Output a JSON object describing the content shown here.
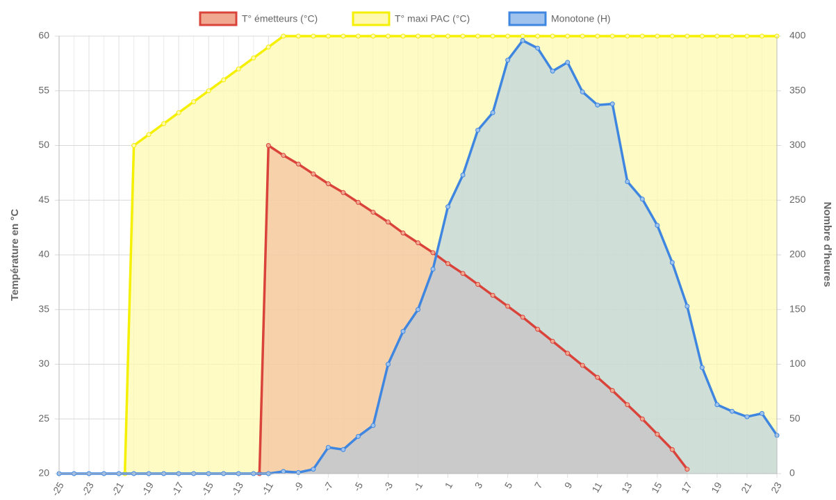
{
  "chart_data": {
    "type": "line",
    "y_label": "Température en °C",
    "y2_label": "Nombre d'heures",
    "xlim": [
      -25,
      23
    ],
    "xticks": [
      -25,
      -23,
      -21,
      -19,
      -17,
      -15,
      -13,
      -11,
      -9,
      -7,
      -5,
      -3,
      -1,
      1,
      3,
      5,
      7,
      9,
      11,
      13,
      15,
      17,
      19,
      21,
      23
    ],
    "ylim": [
      20,
      60
    ],
    "yticks": [
      20,
      25,
      30,
      35,
      40,
      45,
      50,
      55,
      60
    ],
    "y2lim": [
      0,
      400
    ],
    "y2ticks": [
      0,
      50,
      100,
      150,
      200,
      250,
      300,
      350,
      400
    ],
    "grid": true,
    "legend": "top",
    "series": [
      {
        "name": "T° maxi PAC (°C)",
        "color": "#f5f000",
        "fill": "#fff9b0",
        "axis": "y",
        "x": [
          -20.6,
          -20,
          -19,
          -18,
          -17,
          -16,
          -15,
          -14,
          -13,
          -12,
          -11,
          -10,
          -9,
          -8,
          -7,
          -6,
          -5,
          -4,
          -3,
          -2,
          -1,
          0,
          1,
          2,
          3,
          4,
          5,
          6,
          7,
          8,
          9,
          10,
          11,
          12,
          13,
          14,
          15,
          16,
          17,
          18,
          19,
          20,
          21,
          22,
          23
        ],
        "values": [
          20,
          50,
          51,
          52,
          53,
          54,
          55,
          56,
          57,
          58,
          59,
          60,
          60,
          60,
          60,
          60,
          60,
          60,
          60,
          60,
          60,
          60,
          60,
          60,
          60,
          60,
          60,
          60,
          60,
          60,
          60,
          60,
          60,
          60,
          60,
          60,
          60,
          60,
          60,
          60,
          60,
          60,
          60,
          60,
          60
        ]
      },
      {
        "name": "T° émetteurs (°C)",
        "color": "#d9433a",
        "fill": "#f0a890",
        "axis": "y",
        "x": [
          -11.6,
          -11,
          -10,
          -9,
          -8,
          -7,
          -6,
          -5,
          -4,
          -3,
          -2,
          -1,
          0,
          1,
          2,
          3,
          4,
          5,
          6,
          7,
          8,
          9,
          10,
          11,
          12,
          13,
          14,
          15,
          16,
          17
        ],
        "values": [
          20,
          50,
          49.1,
          48.3,
          47.4,
          46.5,
          45.7,
          44.8,
          43.9,
          43.0,
          42.0,
          41.1,
          40.2,
          39.2,
          38.3,
          37.3,
          36.3,
          35.3,
          34.3,
          33.2,
          32.1,
          31.0,
          29.9,
          28.8,
          27.6,
          26.3,
          25.0,
          23.6,
          22.2,
          20.4
        ]
      },
      {
        "name": "Monotone (H)",
        "color": "#3f86e0",
        "fill": "#9fc3ec",
        "axis": "y2",
        "x": [
          -25,
          -24,
          -23,
          -22,
          -21,
          -20,
          -19,
          -18,
          -17,
          -16,
          -15,
          -14,
          -13,
          -12,
          -11,
          -10,
          -9,
          -8,
          -7,
          -6,
          -5,
          -4,
          -3,
          -2,
          -1,
          0,
          1,
          2,
          3,
          4,
          5,
          6,
          7,
          8,
          9,
          10,
          11,
          12,
          13,
          14,
          15,
          16,
          17,
          18,
          19,
          20,
          21,
          22,
          23
        ],
        "values": [
          0,
          0,
          0,
          0,
          0,
          0,
          0,
          0,
          0,
          0,
          0,
          0,
          0,
          0,
          0,
          2,
          1,
          4,
          24,
          22,
          34,
          44,
          100,
          130,
          150,
          187,
          244,
          273,
          314,
          330,
          378,
          396,
          389,
          368,
          376,
          349,
          337,
          338,
          267,
          251,
          227,
          193,
          153,
          97,
          63,
          57,
          52,
          55,
          35
        ]
      }
    ]
  }
}
